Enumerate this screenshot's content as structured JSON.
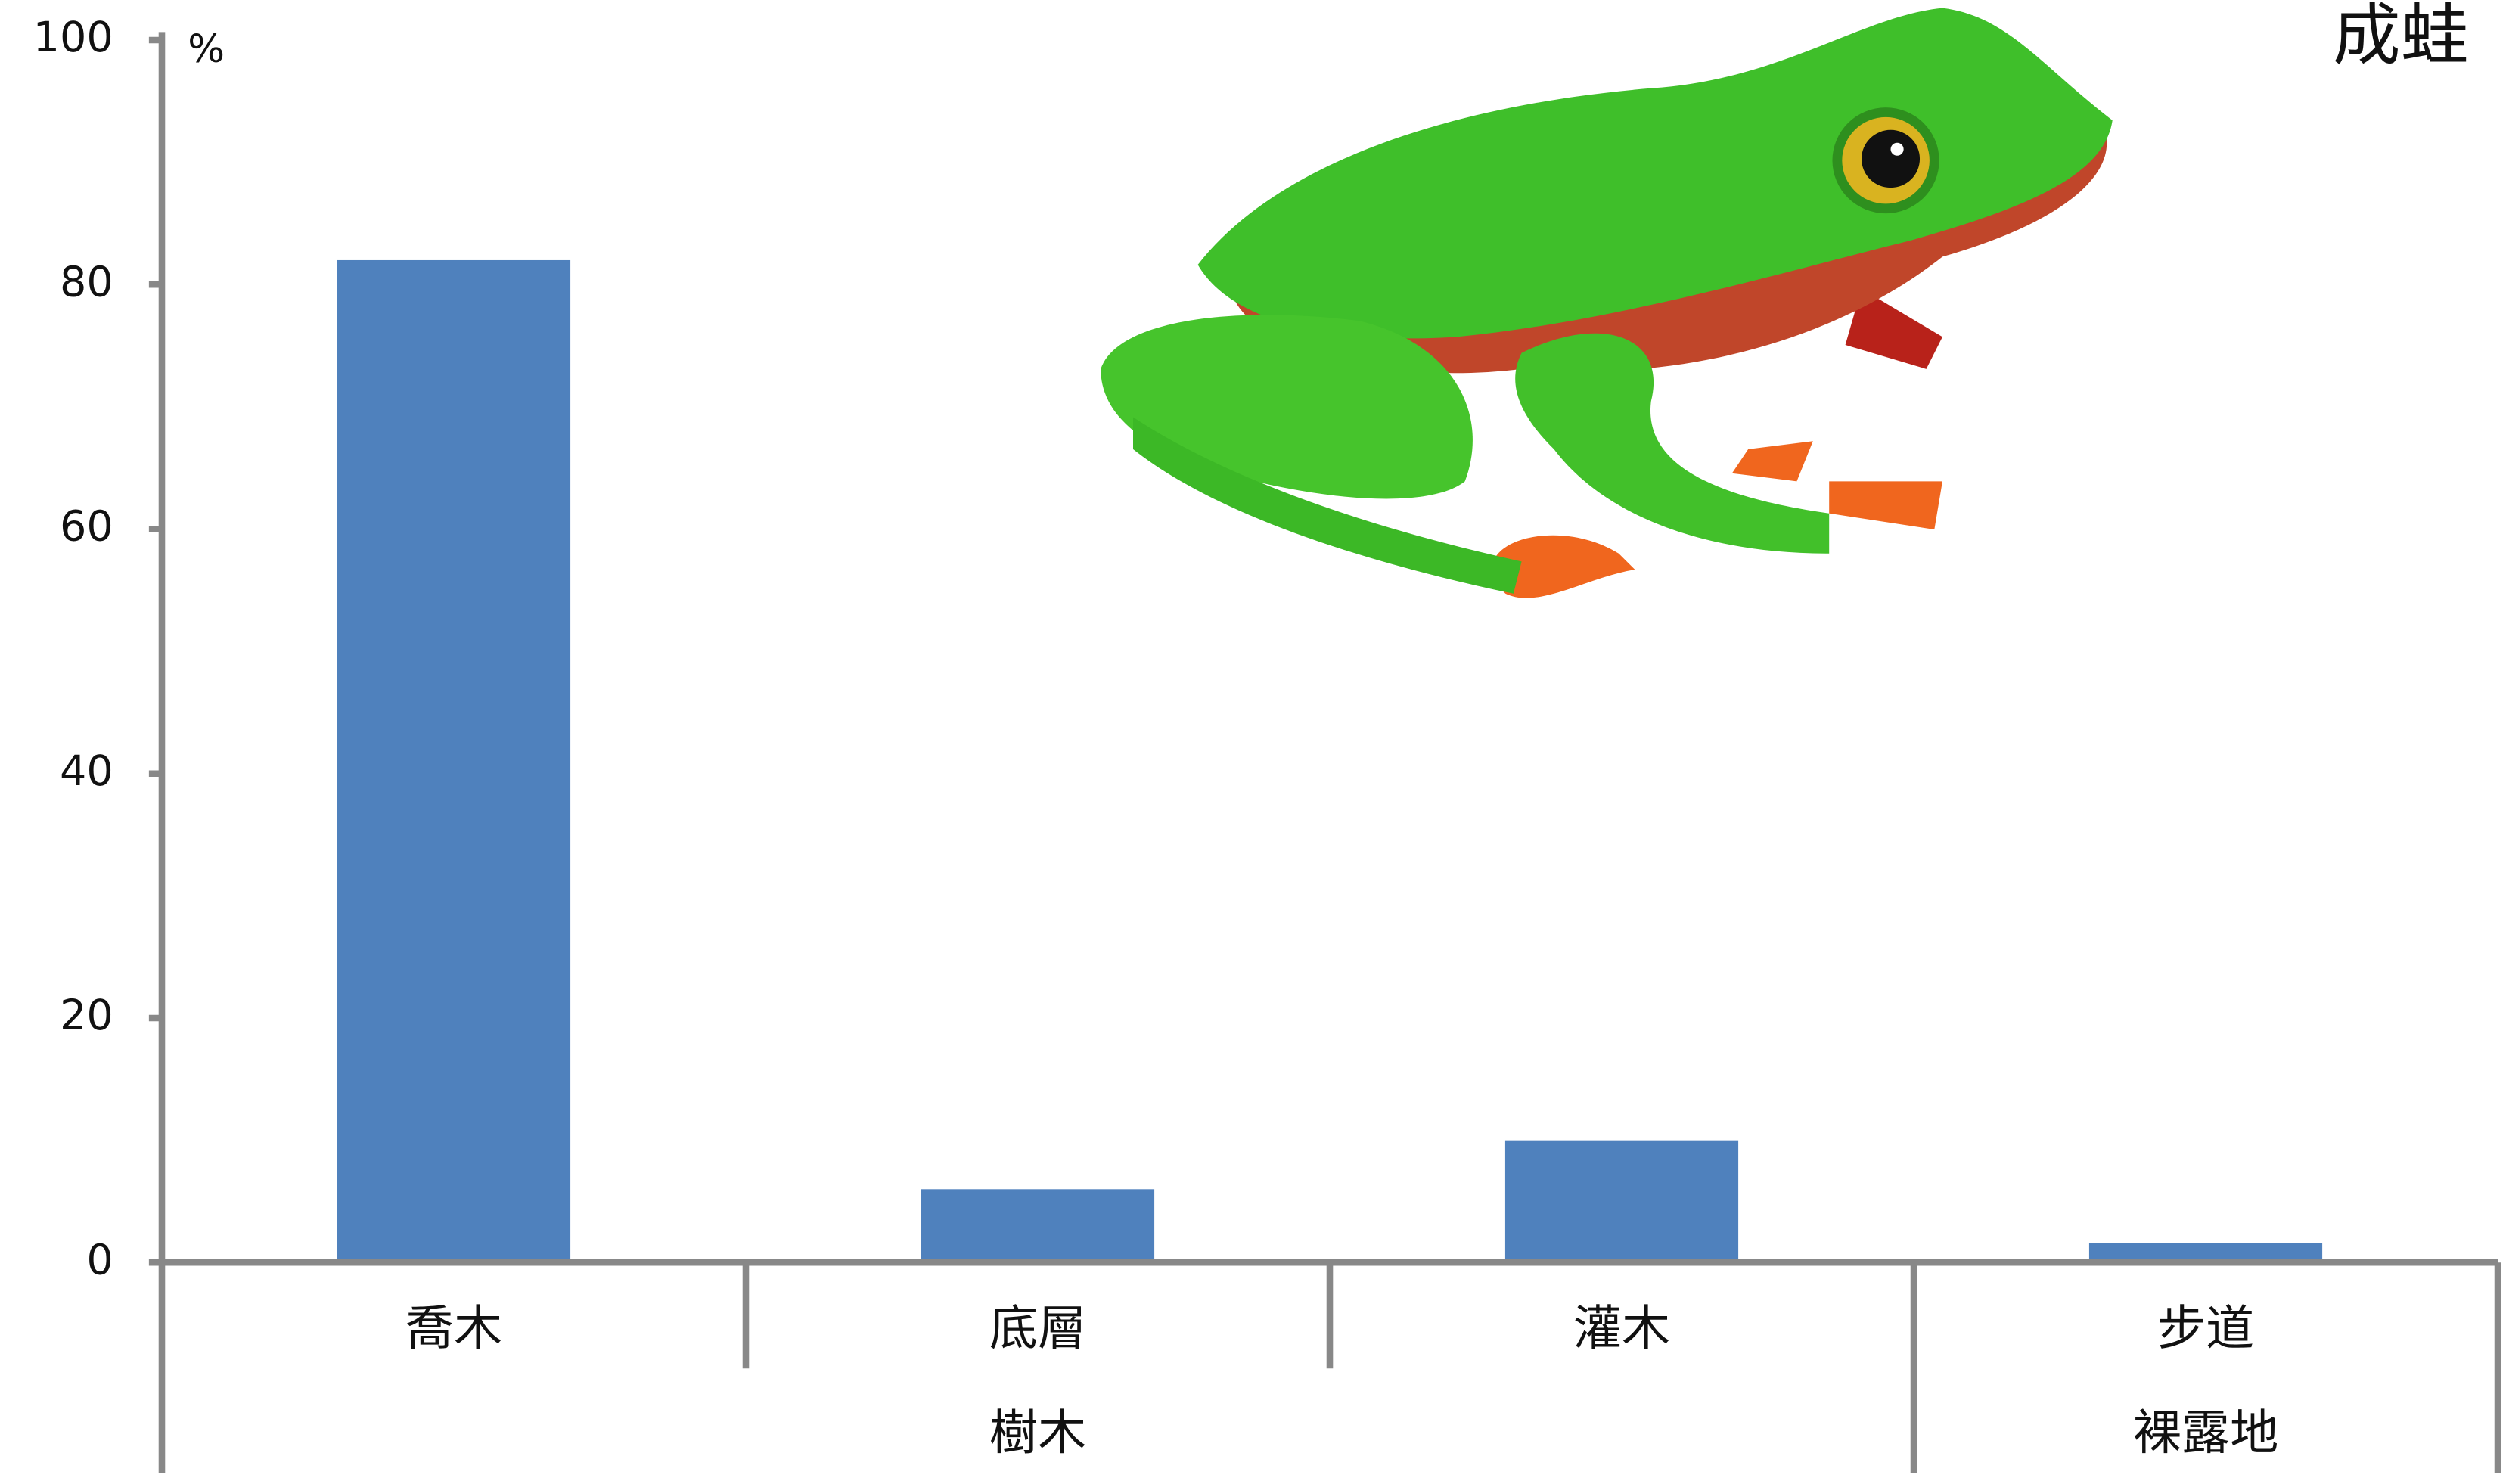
{
  "chart_data": {
    "type": "bar",
    "title": "成蛙",
    "y_unit": "%",
    "categories": [
      "喬木",
      "底層",
      "灌木",
      "步道"
    ],
    "groups": [
      "樹木",
      "樹木",
      "樹木",
      "裸露地"
    ],
    "values": [
      82,
      6,
      10,
      1.6
    ],
    "color": "#4f81bd",
    "ylim": [
      0,
      100
    ],
    "yticks": [
      0,
      20,
      40,
      60,
      80,
      100
    ],
    "grid": false
  }
}
